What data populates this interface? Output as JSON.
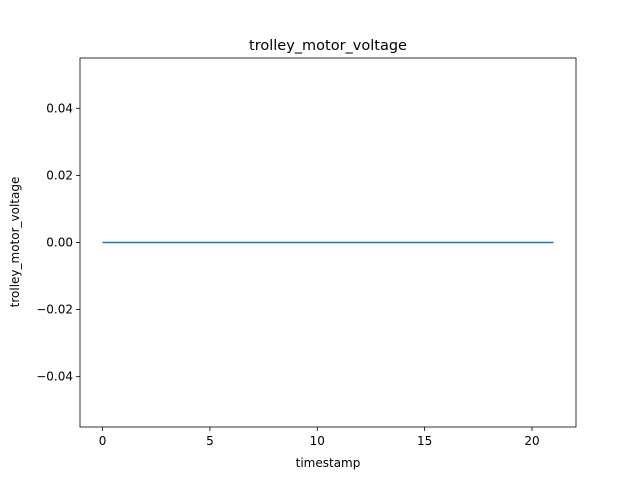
{
  "chart_data": {
    "type": "line",
    "title": "trolley_motor_voltage",
    "xlabel": "timestamp",
    "ylabel": "trolley_motor_voltage",
    "xlim": [
      -1.05,
      22.05
    ],
    "ylim": [
      -0.055,
      0.055
    ],
    "xticks": [
      0,
      5,
      10,
      15,
      20
    ],
    "xtick_labels": [
      "0",
      "5",
      "10",
      "15",
      "20"
    ],
    "yticks": [
      -0.04,
      -0.02,
      0.0,
      0.02,
      0.04
    ],
    "ytick_labels": [
      "−0.04",
      "−0.02",
      "0.00",
      "0.02",
      "0.04"
    ],
    "grid": false,
    "series": [
      {
        "color": "#1f77b4",
        "x": [
          0,
          21
        ],
        "y": [
          0.0,
          0.0
        ]
      }
    ]
  }
}
